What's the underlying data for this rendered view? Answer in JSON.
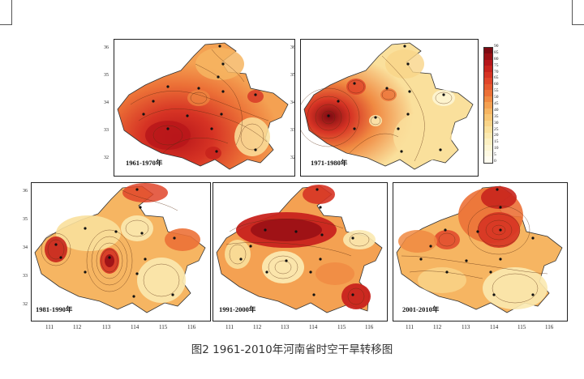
{
  "panels": [
    {
      "label": "1961-1970年",
      "bold_suffix": false
    },
    {
      "label": "1971-1980年",
      "bold_suffix": true
    },
    {
      "label": "1981-1990年",
      "bold_suffix": false
    },
    {
      "label": "1991-2000年",
      "bold_suffix": false
    },
    {
      "label": "2001-2010年",
      "bold_suffix": false
    }
  ],
  "y_ticks": [
    "36",
    "35",
    "34",
    "33",
    "32"
  ],
  "x_ticks": [
    "111",
    "112",
    "113",
    "114",
    "115",
    "116"
  ],
  "colorbar": {
    "values": [
      "90",
      "85",
      "80",
      "75",
      "70",
      "65",
      "60",
      "55",
      "50",
      "45",
      "40",
      "35",
      "30",
      "25",
      "20",
      "15",
      "10",
      "5",
      "0"
    ],
    "colors": [
      "#7d0a12",
      "#9a1015",
      "#b5161a",
      "#c8231d",
      "#d63324",
      "#e0452a",
      "#e65a30",
      "#ec7137",
      "#f08a42",
      "#f4a152",
      "#f6b562",
      "#f8c674",
      "#f9d488",
      "#fae09c",
      "#fbe9b0",
      "#fcf0c2",
      "#fdf5d3",
      "#fef9e2",
      "#fffcef"
    ]
  },
  "caption": "图2 1961-2010年河南省时空干旱转移图",
  "colors": {
    "low": "#fbe6a8",
    "mid": "#f5a84f",
    "high": "#e0482a",
    "extreme": "#b8161a",
    "contour": "#5a2c10"
  }
}
